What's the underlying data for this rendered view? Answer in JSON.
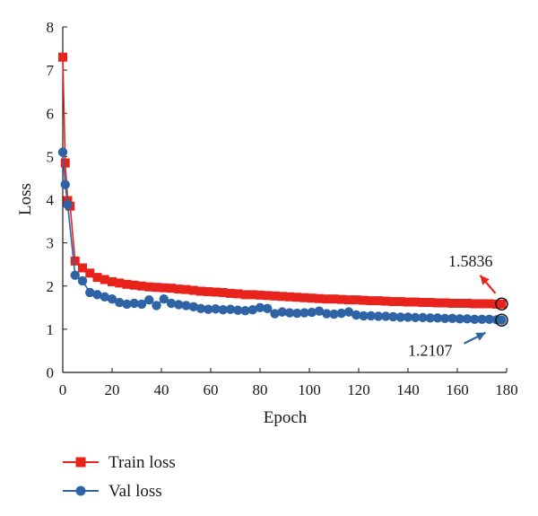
{
  "chart_data": {
    "type": "line",
    "title": "",
    "xlabel": "Epoch",
    "ylabel": "Loss",
    "xlim": [
      0,
      180
    ],
    "ylim": [
      0,
      8
    ],
    "xticks": [
      0,
      20,
      40,
      60,
      80,
      100,
      120,
      140,
      160,
      180
    ],
    "yticks": [
      0,
      1,
      2,
      3,
      4,
      5,
      6,
      7,
      8
    ],
    "grid": false,
    "legend_position": "bottom-left",
    "series": [
      {
        "name": "Train loss",
        "color": "#e8231c",
        "marker": "square",
        "x": [
          0,
          1,
          2,
          3,
          5,
          8,
          11,
          14,
          17,
          20,
          23,
          26,
          29,
          32,
          35,
          38,
          41,
          44,
          47,
          50,
          53,
          56,
          59,
          62,
          65,
          68,
          71,
          74,
          77,
          80,
          83,
          86,
          89,
          92,
          95,
          98,
          101,
          104,
          107,
          110,
          113,
          116,
          119,
          122,
          125,
          128,
          131,
          134,
          137,
          140,
          143,
          146,
          149,
          152,
          155,
          158,
          161,
          164,
          167,
          170,
          173,
          176,
          178
        ],
        "y": [
          7.3,
          4.85,
          3.98,
          3.85,
          2.58,
          2.42,
          2.3,
          2.2,
          2.15,
          2.1,
          2.07,
          2.04,
          2.02,
          2.0,
          1.98,
          1.97,
          1.96,
          1.95,
          1.93,
          1.92,
          1.9,
          1.88,
          1.87,
          1.86,
          1.85,
          1.83,
          1.82,
          1.8,
          1.8,
          1.79,
          1.78,
          1.77,
          1.76,
          1.75,
          1.74,
          1.73,
          1.72,
          1.71,
          1.7,
          1.7,
          1.69,
          1.68,
          1.68,
          1.67,
          1.66,
          1.66,
          1.65,
          1.64,
          1.64,
          1.63,
          1.63,
          1.62,
          1.62,
          1.61,
          1.61,
          1.6,
          1.6,
          1.6,
          1.59,
          1.59,
          1.59,
          1.58,
          1.5836
        ]
      },
      {
        "name": "Val loss",
        "color": "#2e64a6",
        "marker": "circle",
        "x": [
          0,
          1,
          2,
          5,
          8,
          11,
          14,
          17,
          20,
          23,
          26,
          29,
          32,
          35,
          38,
          41,
          44,
          47,
          50,
          53,
          56,
          59,
          62,
          65,
          68,
          71,
          74,
          77,
          80,
          83,
          86,
          89,
          92,
          95,
          98,
          101,
          104,
          107,
          110,
          113,
          116,
          119,
          122,
          125,
          128,
          131,
          134,
          137,
          140,
          143,
          146,
          149,
          152,
          155,
          158,
          161,
          164,
          167,
          170,
          173,
          176,
          178
        ],
        "y": [
          5.1,
          4.35,
          3.88,
          2.25,
          2.12,
          1.85,
          1.8,
          1.75,
          1.7,
          1.62,
          1.58,
          1.6,
          1.58,
          1.68,
          1.55,
          1.7,
          1.6,
          1.57,
          1.55,
          1.52,
          1.48,
          1.46,
          1.47,
          1.45,
          1.46,
          1.44,
          1.43,
          1.45,
          1.5,
          1.48,
          1.36,
          1.4,
          1.38,
          1.37,
          1.38,
          1.39,
          1.42,
          1.36,
          1.35,
          1.37,
          1.4,
          1.33,
          1.31,
          1.31,
          1.3,
          1.3,
          1.29,
          1.28,
          1.28,
          1.27,
          1.27,
          1.26,
          1.26,
          1.25,
          1.25,
          1.24,
          1.24,
          1.23,
          1.23,
          1.23,
          1.22,
          1.2107
        ]
      }
    ],
    "annotations": [
      {
        "text": "1.5836",
        "series": "Train loss",
        "x": 178,
        "y": 1.5836
      },
      {
        "text": "1.2107",
        "series": "Val loss",
        "x": 178,
        "y": 1.2107
      }
    ]
  }
}
